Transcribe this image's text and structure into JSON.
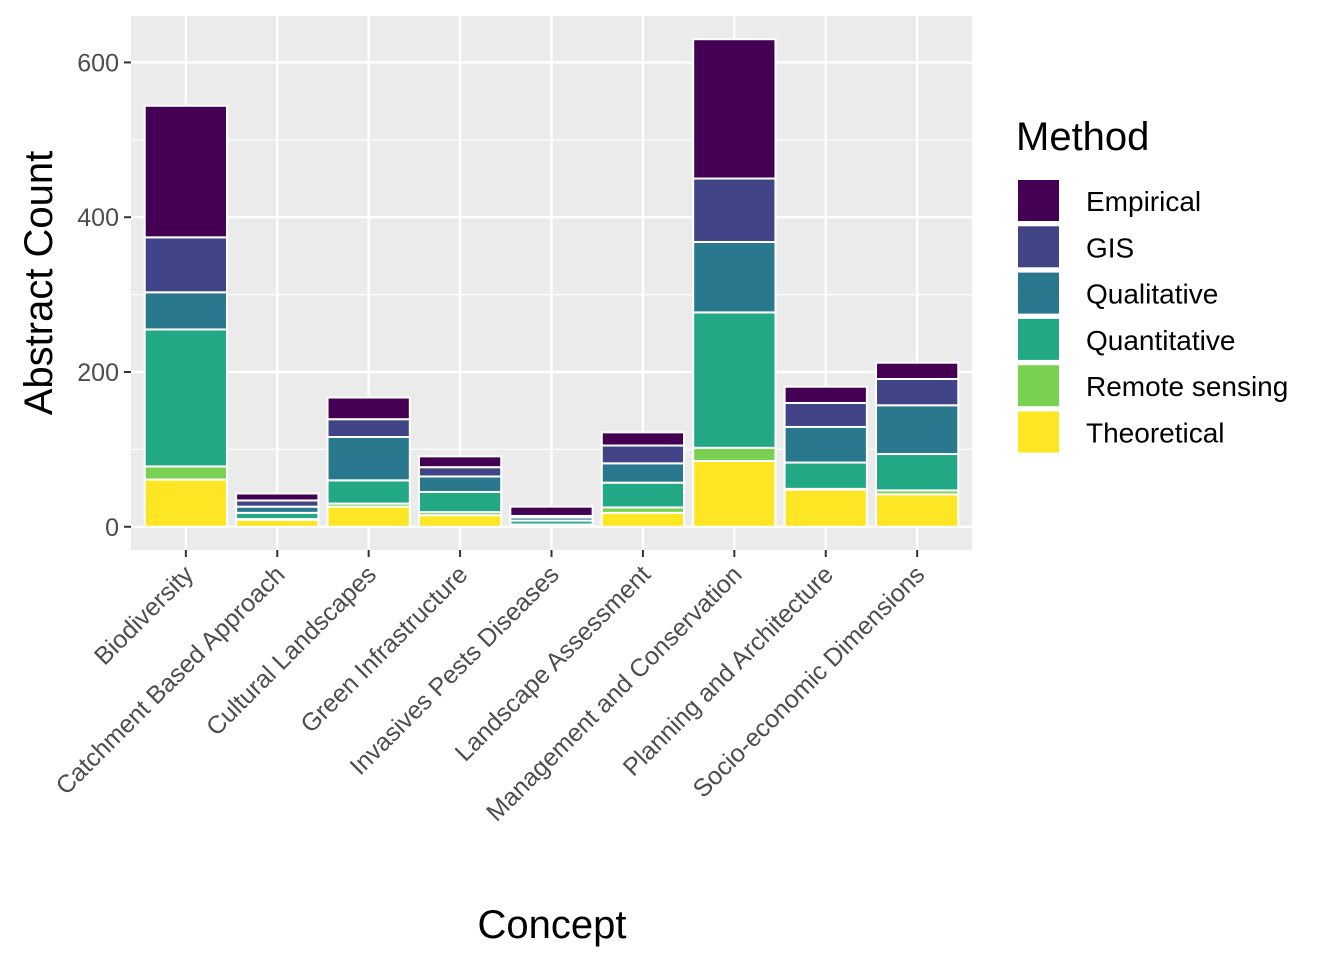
{
  "chart_data": {
    "type": "bar",
    "stacked": true,
    "xlabel": "Concept",
    "ylabel": "Abstract Count",
    "ylim": [
      -30,
      660
    ],
    "yticks": [
      0,
      200,
      400,
      600
    ],
    "grid": true,
    "legend": {
      "title": "Method",
      "position": "right"
    },
    "categories": [
      "Biodiversity",
      "Catchment Based Approach",
      "Cultural Landscapes",
      "Green Infrastructure",
      "Invasives Pests Diseases",
      "Landscape Assessment",
      "Management and Conservation",
      "Planning and Architecture",
      "Socio-economic Dimensions"
    ],
    "series": [
      {
        "name": "Theoretical",
        "color": "#fde725",
        "values": [
          61,
          9,
          26,
          15,
          2,
          18,
          85,
          48,
          42
        ]
      },
      {
        "name": "Remote sensing",
        "color": "#7ad151",
        "values": [
          17,
          1,
          4,
          4,
          1,
          7,
          17,
          1,
          5
        ]
      },
      {
        "name": "Quantitative",
        "color": "#22a884",
        "values": [
          177,
          8,
          30,
          26,
          5,
          32,
          175,
          34,
          47
        ]
      },
      {
        "name": "Qualitative",
        "color": "#2a788e",
        "values": [
          48,
          8,
          56,
          20,
          4,
          25,
          91,
          46,
          63
        ]
      },
      {
        "name": "GIS",
        "color": "#414487",
        "values": [
          71,
          8,
          23,
          12,
          2,
          23,
          82,
          31,
          34
        ]
      },
      {
        "name": "Empirical",
        "color": "#440154",
        "values": [
          170,
          9,
          28,
          14,
          12,
          17,
          180,
          21,
          21
        ]
      }
    ],
    "legend_order": [
      "Empirical",
      "GIS",
      "Qualitative",
      "Quantitative",
      "Remote sensing",
      "Theoretical"
    ]
  },
  "colors": {
    "panel_background": "#ebebeb",
    "grid": "#ffffff",
    "bar_outline": "#ffffff"
  }
}
